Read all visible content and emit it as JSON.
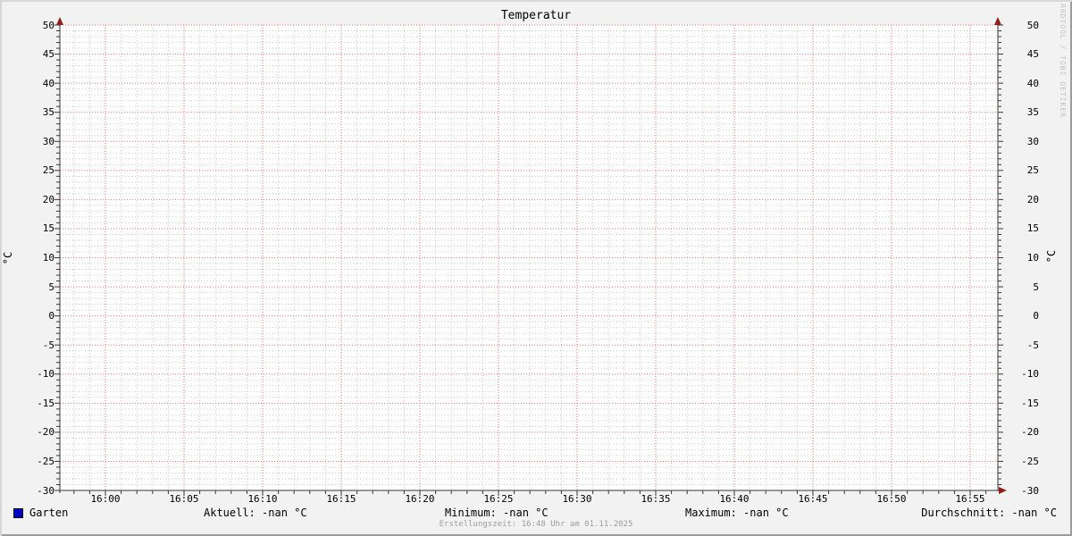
{
  "title": "Temperatur",
  "watermark": "RRDTOOL / TOBI OETIKER",
  "footer": "Erstellungszeit: 16:48 Uhr am 01.11.2025",
  "axes": {
    "left_unit": "°C",
    "right_unit": "°C"
  },
  "legend": {
    "series": {
      "label": "Garten",
      "color": "#0000c8"
    },
    "stats": {
      "aktuell": "Aktuell: -nan °C",
      "minimum": "Minimum: -nan °C",
      "maximum": "Maximum: -nan °C",
      "durchschnitt": "Durchschnitt: -nan °C"
    }
  },
  "chart_data": {
    "type": "line",
    "title": "Temperatur",
    "xlabel": "",
    "ylabel": "°C",
    "ylim": [
      -30,
      50
    ],
    "y_major_step": 5,
    "y_minor_step": 1,
    "y_ticks": [
      50,
      45,
      40,
      35,
      30,
      25,
      20,
      15,
      10,
      5,
      0,
      -5,
      -10,
      -15,
      -20,
      -25,
      -30
    ],
    "x_ticks": [
      "16:00",
      "16:05",
      "16:10",
      "16:15",
      "16:20",
      "16:25",
      "16:30",
      "16:35",
      "16:40",
      "16:45",
      "16:50",
      "16:55"
    ],
    "x_major_step_minutes": 5,
    "x_minor_step_minutes": 1,
    "grid": true,
    "legend_position": "bottom",
    "series": [
      {
        "name": "Garten",
        "color": "#0000c8",
        "values": []
      }
    ]
  },
  "colors": {
    "background": "#f2f2f2",
    "canvas": "#ffffff",
    "shade_topleft": "#d7d7d7",
    "shade_bottomright": "#9c9c9c",
    "grid_major": "#e86060",
    "grid_minor": "#b3b3b3",
    "axis": "#373737",
    "arrow": "#8e1f19",
    "text": "#000000",
    "footer_text": "#9c9c9c",
    "watermark_text": "#c2c2c2",
    "series_garten": "#0000c8"
  }
}
